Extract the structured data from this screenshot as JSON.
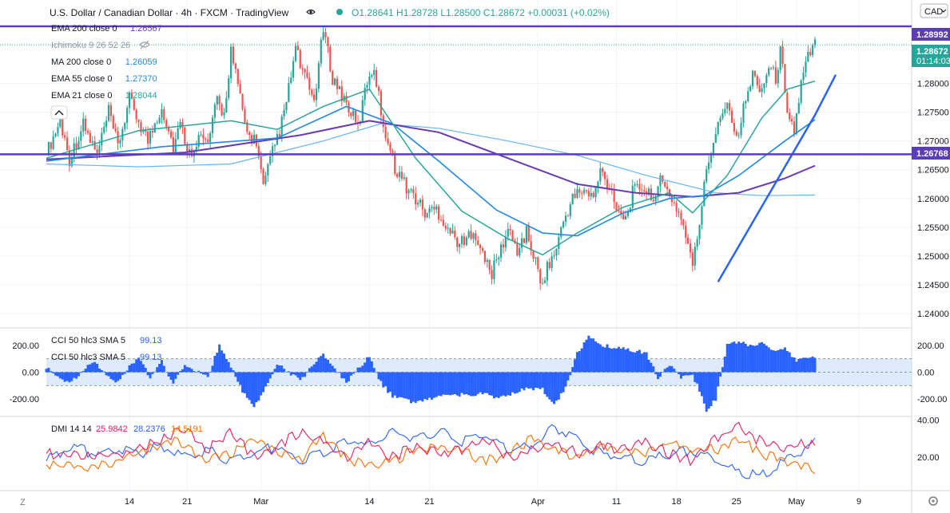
{
  "header": {
    "symbol": "U.S. Dollar / Canadian Dollar · 4h · FXCM · TradingView",
    "ohlc": "O1.28641  H1.28728  L1.28500  C1.28672  +0.00031 (+0.02%)",
    "currency": "CAD"
  },
  "indicators": [
    {
      "label": "EMA 200 close 0",
      "value": "1.26567",
      "color": "#673ab7"
    },
    {
      "label": "Ichimoku 9 26 52 26",
      "value": "",
      "color": "#9598a1"
    },
    {
      "label": "MA 200 close 0",
      "value": "1.26059",
      "color": "#1e88e5"
    },
    {
      "label": "EMA 55 close 0",
      "value": "1.27370",
      "color": "#1e88e5"
    },
    {
      "label": "EMA 21 close 0",
      "value": "1.28044",
      "color": "#26a69a"
    }
  ],
  "price_tags": {
    "resistance": "1.28992",
    "last_price": "1.28672",
    "countdown": "01:14:03",
    "support": "1.26768"
  },
  "cci": {
    "label": "CCI 50 hlc3 SMA 5",
    "value": "99.13"
  },
  "dmi": {
    "label": "DMI 14 14",
    "v1": "25.9842",
    "v2": "28.2376",
    "v3": "14.5191"
  },
  "chart_data": {
    "type": "candlestick",
    "title": "U.S. Dollar / Canadian Dollar · 4h · FXCM",
    "price_axis": {
      "ticks": [
        "1.24000",
        "1.24500",
        "1.25000",
        "1.25500",
        "1.26000",
        "1.26500",
        "1.27000",
        "1.27500",
        "1.28000"
      ],
      "range": [
        1.2375,
        1.2945
      ]
    },
    "cci_axis": {
      "ticks": [
        "200.00",
        "0.00",
        "-200.00"
      ],
      "range": [
        -330,
        330
      ]
    },
    "dmi_axis": {
      "ticks": [
        "40.00",
        "20.00"
      ],
      "range": [
        2,
        42
      ]
    },
    "x_labels": [
      "14",
      "21",
      "Mar",
      "14",
      "21",
      "Apr",
      "11",
      "18",
      "25",
      "May",
      "9"
    ],
    "horizontal_levels": [
      1.28992,
      1.26768
    ],
    "close_path": [
      [
        0,
        1.2678
      ],
      [
        6,
        1.2735
      ],
      [
        10,
        1.2668
      ],
      [
        16,
        1.2728
      ],
      [
        22,
        1.2675
      ],
      [
        27,
        1.275
      ],
      [
        31,
        1.269
      ],
      [
        36,
        1.2772
      ],
      [
        40,
        1.2735
      ],
      [
        44,
        1.27
      ],
      [
        50,
        1.276
      ],
      [
        55,
        1.269
      ],
      [
        58,
        1.2728
      ],
      [
        62,
        1.2678
      ],
      [
        66,
        1.2708
      ],
      [
        70,
        1.2695
      ],
      [
        74,
        1.277
      ],
      [
        77,
        1.2745
      ],
      [
        80,
        1.2858
      ],
      [
        84,
        1.2772
      ],
      [
        87,
        1.2712
      ],
      [
        91,
        1.27
      ],
      [
        94,
        1.2618
      ],
      [
        98,
        1.268
      ],
      [
        103,
        1.2745
      ],
      [
        108,
        1.286
      ],
      [
        112,
        1.2808
      ],
      [
        116,
        1.277
      ],
      [
        120,
        1.2895
      ],
      [
        124,
        1.281
      ],
      [
        128,
        1.278
      ],
      [
        132,
        1.275
      ],
      [
        135,
        1.2722
      ],
      [
        139,
        1.2805
      ],
      [
        142,
        1.283
      ],
      [
        145,
        1.275
      ],
      [
        148,
        1.2698
      ],
      [
        151,
        1.2655
      ],
      [
        156,
        1.262
      ],
      [
        160,
        1.26
      ],
      [
        164,
        1.2575
      ],
      [
        169,
        1.2582
      ],
      [
        173,
        1.2555
      ],
      [
        177,
        1.253
      ],
      [
        181,
        1.252
      ],
      [
        185,
        1.255
      ],
      [
        189,
        1.25
      ],
      [
        193,
        1.247
      ],
      [
        196,
        1.2502
      ],
      [
        200,
        1.2545
      ],
      [
        204,
        1.251
      ],
      [
        208,
        1.254
      ],
      [
        212,
        1.249
      ],
      [
        214,
        1.245
      ],
      [
        217,
        1.248
      ],
      [
        221,
        1.2512
      ],
      [
        224,
        1.256
      ],
      [
        228,
        1.26
      ],
      [
        232,
        1.2615
      ],
      [
        237,
        1.26
      ],
      [
        240,
        1.2648
      ],
      [
        244,
        1.262
      ],
      [
        248,
        1.258
      ],
      [
        251,
        1.2565
      ],
      [
        254,
        1.261
      ],
      [
        258,
        1.2622
      ],
      [
        262,
        1.26
      ],
      [
        266,
        1.2628
      ],
      [
        270,
        1.2608
      ],
      [
        274,
        1.2575
      ],
      [
        277,
        1.254
      ],
      [
        280,
        1.248
      ],
      [
        283,
        1.256
      ],
      [
        286,
        1.265
      ],
      [
        289,
        1.27
      ],
      [
        292,
        1.275
      ],
      [
        296,
        1.2765
      ],
      [
        299,
        1.27
      ],
      [
        302,
        1.2755
      ],
      [
        306,
        1.2815
      ],
      [
        310,
        1.279
      ],
      [
        313,
        1.283
      ],
      [
        316,
        1.281
      ],
      [
        318,
        1.2855
      ],
      [
        321,
        1.276
      ],
      [
        324,
        1.2715
      ],
      [
        327,
        1.28
      ],
      [
        330,
        1.2845
      ],
      [
        333,
        1.28672
      ]
    ],
    "ema21": [
      [
        0,
        1.267
      ],
      [
        40,
        1.2718
      ],
      [
        80,
        1.2735
      ],
      [
        100,
        1.272
      ],
      [
        120,
        1.276
      ],
      [
        140,
        1.279
      ],
      [
        160,
        1.267
      ],
      [
        180,
        1.2578
      ],
      [
        200,
        1.253
      ],
      [
        215,
        1.2502
      ],
      [
        230,
        1.254
      ],
      [
        250,
        1.2585
      ],
      [
        270,
        1.261
      ],
      [
        280,
        1.2575
      ],
      [
        295,
        1.264
      ],
      [
        310,
        1.274
      ],
      [
        321,
        1.279
      ],
      [
        333,
        1.2804
      ]
    ],
    "ema55": [
      [
        0,
        1.2665
      ],
      [
        50,
        1.269
      ],
      [
        100,
        1.2705
      ],
      [
        130,
        1.276
      ],
      [
        150,
        1.273
      ],
      [
        170,
        1.2665
      ],
      [
        195,
        1.258
      ],
      [
        215,
        1.254
      ],
      [
        230,
        1.2535
      ],
      [
        250,
        1.2575
      ],
      [
        270,
        1.26
      ],
      [
        285,
        1.2605
      ],
      [
        300,
        1.264
      ],
      [
        320,
        1.27
      ],
      [
        333,
        1.2737
      ]
    ],
    "ema200": [
      [
        0,
        1.2668
      ],
      [
        60,
        1.268
      ],
      [
        110,
        1.271
      ],
      [
        140,
        1.2735
      ],
      [
        170,
        1.2715
      ],
      [
        200,
        1.267
      ],
      [
        230,
        1.2625
      ],
      [
        255,
        1.261
      ],
      [
        280,
        1.2603
      ],
      [
        300,
        1.261
      ],
      [
        320,
        1.2635
      ],
      [
        333,
        1.2657
      ]
    ],
    "ma200": [
      [
        0,
        1.266
      ],
      [
        40,
        1.2655
      ],
      [
        80,
        1.266
      ],
      [
        120,
        1.27
      ],
      [
        145,
        1.273
      ],
      [
        170,
        1.2722
      ],
      [
        200,
        1.27
      ],
      [
        230,
        1.2675
      ],
      [
        260,
        1.264
      ],
      [
        290,
        1.261
      ],
      [
        310,
        1.2605
      ],
      [
        333,
        1.2606
      ]
    ],
    "trendline": [
      [
        291,
        1.2455
      ],
      [
        333,
        1.2745
      ],
      [
        342,
        1.2815
      ]
    ],
    "cci_values": [
      [
        0,
        40
      ],
      [
        10,
        -90
      ],
      [
        20,
        80
      ],
      [
        30,
        -80
      ],
      [
        40,
        120
      ],
      [
        45,
        -40
      ],
      [
        50,
        80
      ],
      [
        55,
        -90
      ],
      [
        60,
        60
      ],
      [
        70,
        -40
      ],
      [
        75,
        210
      ],
      [
        80,
        40
      ],
      [
        85,
        -140
      ],
      [
        90,
        -260
      ],
      [
        95,
        -120
      ],
      [
        100,
        60
      ],
      [
        110,
        -60
      ],
      [
        120,
        140
      ],
      [
        130,
        -80
      ],
      [
        140,
        120
      ],
      [
        145,
        -80
      ],
      [
        150,
        -180
      ],
      [
        160,
        -230
      ],
      [
        170,
        -180
      ],
      [
        180,
        -170
      ],
      [
        190,
        -160
      ],
      [
        195,
        -200
      ],
      [
        200,
        -170
      ],
      [
        205,
        -140
      ],
      [
        210,
        -120
      ],
      [
        215,
        -130
      ],
      [
        220,
        -250
      ],
      [
        225,
        -120
      ],
      [
        230,
        140
      ],
      [
        235,
        260
      ],
      [
        240,
        200
      ],
      [
        250,
        180
      ],
      [
        260,
        140
      ],
      [
        265,
        -40
      ],
      [
        270,
        60
      ],
      [
        275,
        -40
      ],
      [
        280,
        -20
      ],
      [
        283,
        -140
      ],
      [
        286,
        -300
      ],
      [
        290,
        -200
      ],
      [
        295,
        200
      ],
      [
        300,
        230
      ],
      [
        305,
        200
      ],
      [
        310,
        220
      ],
      [
        315,
        160
      ],
      [
        320,
        180
      ],
      [
        325,
        80
      ],
      [
        330,
        120
      ],
      [
        333,
        99
      ]
    ],
    "dmi_plus": [
      [
        0,
        22
      ],
      [
        20,
        20
      ],
      [
        40,
        24
      ],
      [
        60,
        36
      ],
      [
        70,
        24
      ],
      [
        80,
        34
      ],
      [
        90,
        20
      ],
      [
        100,
        26
      ],
      [
        110,
        34
      ],
      [
        120,
        28
      ],
      [
        130,
        20
      ],
      [
        140,
        28
      ],
      [
        150,
        20
      ],
      [
        160,
        26
      ],
      [
        170,
        22
      ],
      [
        180,
        24
      ],
      [
        190,
        30
      ],
      [
        200,
        20
      ],
      [
        210,
        24
      ],
      [
        220,
        28
      ],
      [
        230,
        22
      ],
      [
        240,
        26
      ],
      [
        250,
        24
      ],
      [
        260,
        28
      ],
      [
        270,
        22
      ],
      [
        280,
        18
      ],
      [
        290,
        30
      ],
      [
        300,
        36
      ],
      [
        310,
        28
      ],
      [
        320,
        24
      ],
      [
        325,
        28
      ],
      [
        333,
        26
      ]
    ],
    "dmi_minus": [
      [
        0,
        18
      ],
      [
        10,
        26
      ],
      [
        20,
        22
      ],
      [
        30,
        24
      ],
      [
        40,
        22
      ],
      [
        50,
        26
      ],
      [
        60,
        20
      ],
      [
        70,
        24
      ],
      [
        80,
        18
      ],
      [
        90,
        22
      ],
      [
        100,
        26
      ],
      [
        110,
        18
      ],
      [
        120,
        22
      ],
      [
        130,
        30
      ],
      [
        140,
        26
      ],
      [
        150,
        34
      ],
      [
        160,
        30
      ],
      [
        170,
        34
      ],
      [
        180,
        28
      ],
      [
        190,
        32
      ],
      [
        200,
        24
      ],
      [
        210,
        26
      ],
      [
        220,
        36
      ],
      [
        230,
        30
      ],
      [
        240,
        22
      ],
      [
        250,
        20
      ],
      [
        260,
        18
      ],
      [
        270,
        22
      ],
      [
        280,
        24
      ],
      [
        290,
        18
      ],
      [
        300,
        12
      ],
      [
        310,
        10
      ],
      [
        320,
        18
      ],
      [
        333,
        28
      ]
    ],
    "adx": [
      [
        0,
        16
      ],
      [
        20,
        14
      ],
      [
        40,
        22
      ],
      [
        55,
        30
      ],
      [
        70,
        18
      ],
      [
        80,
        22
      ],
      [
        90,
        30
      ],
      [
        100,
        24
      ],
      [
        110,
        18
      ],
      [
        120,
        32
      ],
      [
        130,
        20
      ],
      [
        140,
        14
      ],
      [
        150,
        18
      ],
      [
        160,
        24
      ],
      [
        170,
        26
      ],
      [
        180,
        24
      ],
      [
        190,
        18
      ],
      [
        200,
        22
      ],
      [
        210,
        30
      ],
      [
        220,
        24
      ],
      [
        230,
        20
      ],
      [
        240,
        26
      ],
      [
        250,
        24
      ],
      [
        260,
        22
      ],
      [
        270,
        28
      ],
      [
        280,
        24
      ],
      [
        290,
        24
      ],
      [
        300,
        30
      ],
      [
        310,
        22
      ],
      [
        320,
        18
      ],
      [
        333,
        14
      ]
    ]
  }
}
